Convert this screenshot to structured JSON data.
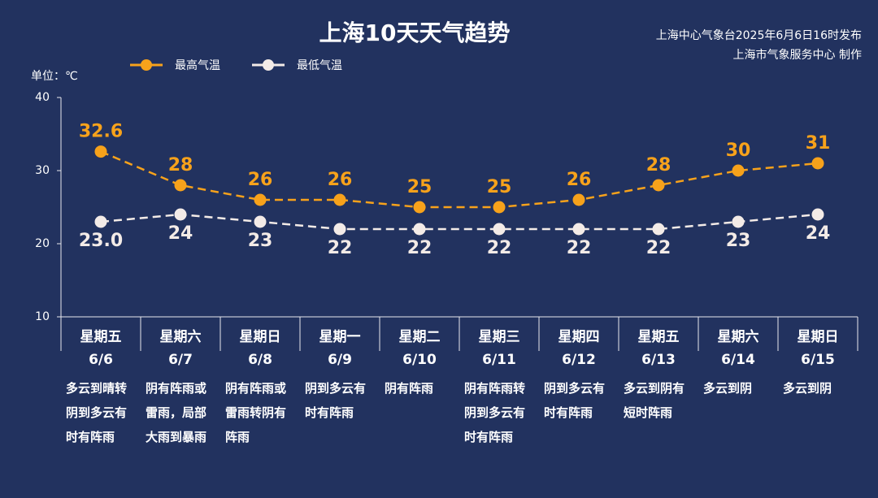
{
  "chart_data": {
    "type": "line",
    "title": "上海10天天气趋势",
    "source": [
      "上海中心气象台2025年6月6日16时发布",
      "上海市气象服务中心 制作"
    ],
    "unit_label": "单位：℃",
    "weekdays": [
      "星期五",
      "星期六",
      "星期日",
      "星期一",
      "星期二",
      "星期三",
      "星期四",
      "星期五",
      "星期六",
      "星期日"
    ],
    "categories": [
      "6/6",
      "6/7",
      "6/8",
      "6/9",
      "6/10",
      "6/11",
      "6/12",
      "6/13",
      "6/14",
      "6/15"
    ],
    "descriptions": [
      "多云到晴转阴到多云有时有阵雨",
      "阴有阵雨或雷雨，局部大雨到暴雨",
      "阴有阵雨或雷雨转阴有阵雨",
      "阴到多云有时有阵雨",
      "阴有阵雨",
      "阴有阵雨转阴到多云有时有阵雨",
      "阴到多云有时有阵雨",
      "多云到阴有短时阵雨",
      "多云到阴",
      "多云到阴"
    ],
    "series": [
      {
        "name": "最高气温",
        "color": "#f7a21b",
        "values": [
          32.6,
          28,
          26,
          26,
          25,
          25,
          26,
          28,
          30,
          31
        ]
      },
      {
        "name": "最低气温",
        "color": "#f3ebe7",
        "values": [
          23.0,
          24,
          23,
          22,
          22,
          22,
          22,
          22,
          23,
          24
        ],
        "value_labels": [
          "23.0",
          "24",
          "23",
          "22",
          "22",
          "22",
          "22",
          "22",
          "23",
          "24"
        ]
      }
    ],
    "ylim": [
      10,
      40
    ],
    "yticks": [
      10,
      20,
      30,
      40
    ]
  }
}
